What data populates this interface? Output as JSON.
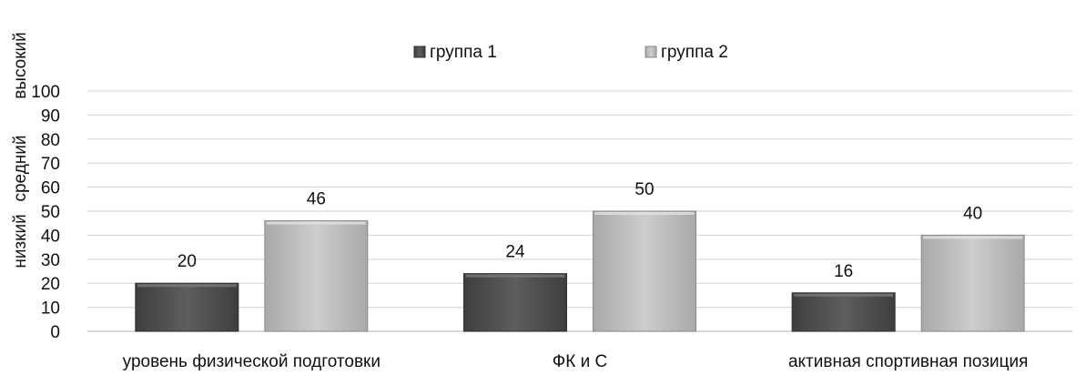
{
  "chart_data": {
    "type": "bar",
    "categories": [
      "уровень физической подготовки",
      "ФК и С",
      "активная спортивная позиция"
    ],
    "series": [
      {
        "name": "группа 1",
        "values": [
          20,
          24,
          16
        ],
        "color": "#5a5a5a"
      },
      {
        "name": "группа 2",
        "values": [
          46,
          50,
          40
        ],
        "color": "#c0c0c0"
      }
    ],
    "ylim": [
      0,
      100
    ],
    "yticks": [
      0,
      10,
      20,
      30,
      40,
      50,
      60,
      70,
      80,
      90,
      100
    ],
    "ylabel_parts": [
      "низкий",
      "средний",
      "высокий"
    ],
    "legend_position": "top-center",
    "grid": true
  }
}
